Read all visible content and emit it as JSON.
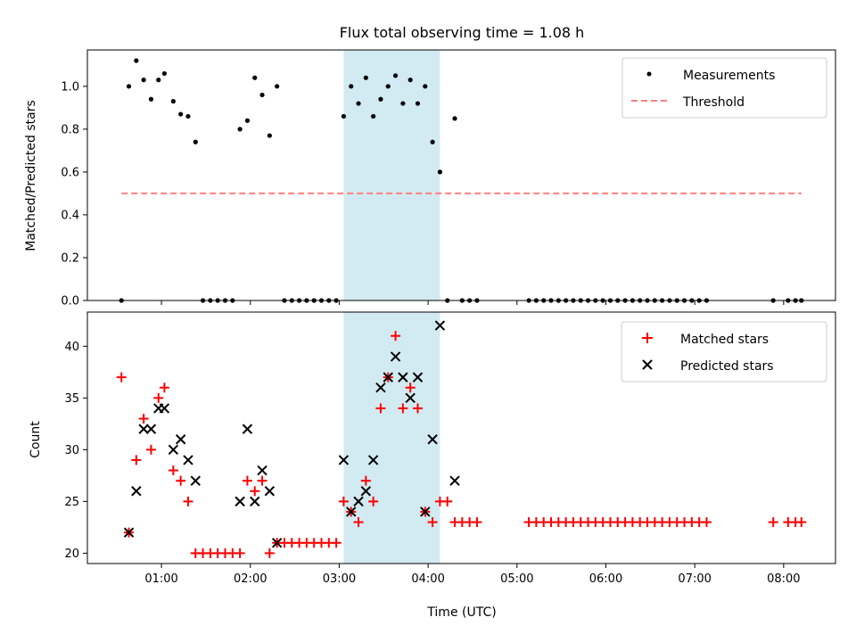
{
  "figure": {
    "title": "Flux total observing time = 1.08 h"
  },
  "colors": {
    "measurement": "#000000",
    "threshold": "#ff7f7f",
    "matched": "#ff0000",
    "predicted": "#000000",
    "highlight": "#add8e6"
  },
  "chart_data": [
    {
      "type": "scatter",
      "title": "Flux total observing time = 1.08 h",
      "xlabel": "",
      "ylabel": "Matched/Predicted stars",
      "xlim": [
        "00:10",
        "08:35"
      ],
      "ylim": [
        0,
        1.17
      ],
      "x_ticks": [
        "01:00",
        "02:00",
        "03:00",
        "04:00",
        "05:00",
        "06:00",
        "07:00",
        "08:00"
      ],
      "y_ticks": [
        0.0,
        0.2,
        0.4,
        0.6,
        0.8,
        1.0
      ],
      "x_tick_labels_shown": false,
      "highlight_span": [
        "03:03",
        "04:08"
      ],
      "legend_position": "upper right",
      "legend": [
        "Measurements",
        "Threshold"
      ],
      "series": [
        {
          "name": "Measurements",
          "marker": "dot",
          "x": [
            "00:33",
            "00:38",
            "00:43",
            "00:48",
            "00:53",
            "00:58",
            "01:02",
            "01:08",
            "01:13",
            "01:18",
            "01:23",
            "01:28",
            "01:33",
            "01:38",
            "01:43",
            "01:48",
            "01:53",
            "01:58",
            "02:03",
            "02:08",
            "02:13",
            "02:18",
            "02:23",
            "02:28",
            "02:33",
            "02:38",
            "02:43",
            "02:48",
            "02:53",
            "02:58",
            "03:03",
            "03:08",
            "03:13",
            "03:18",
            "03:23",
            "03:28",
            "03:33",
            "03:38",
            "03:43",
            "03:48",
            "03:53",
            "03:58",
            "04:03",
            "04:08",
            "04:13",
            "04:18",
            "04:23",
            "04:28",
            "04:33",
            "05:08",
            "05:13",
            "05:18",
            "05:23",
            "05:28",
            "05:33",
            "05:38",
            "05:43",
            "05:48",
            "05:53",
            "05:58",
            "06:03",
            "06:08",
            "06:13",
            "06:18",
            "06:23",
            "06:28",
            "06:33",
            "06:38",
            "06:43",
            "06:48",
            "06:53",
            "06:58",
            "07:03",
            "07:08",
            "07:53",
            "08:03",
            "08:08",
            "08:12"
          ],
          "y": [
            0,
            1.0,
            1.12,
            1.03,
            0.94,
            1.03,
            1.06,
            0.93,
            0.87,
            0.86,
            0.74,
            0,
            0,
            0,
            0,
            0,
            0.8,
            0.84,
            1.04,
            0.96,
            0.77,
            1.0,
            0,
            0,
            0,
            0,
            0,
            0,
            0,
            0,
            0.86,
            1.0,
            0.92,
            1.04,
            0.86,
            0.94,
            1.0,
            1.05,
            0.92,
            1.03,
            0.92,
            1.0,
            0.74,
            0.6,
            0,
            0.85,
            0,
            0,
            0,
            0,
            0,
            0,
            0,
            0,
            0,
            0,
            0,
            0,
            0,
            0,
            0,
            0,
            0,
            0,
            0,
            0,
            0,
            0,
            0,
            0,
            0,
            0,
            0,
            0,
            0,
            0,
            0,
            0
          ]
        },
        {
          "name": "Threshold",
          "style": "dashed",
          "x": [
            "00:33",
            "08:12"
          ],
          "y": [
            0.5,
            0.5
          ]
        }
      ]
    },
    {
      "type": "scatter",
      "title": "",
      "xlabel": "Time (UTC)",
      "ylabel": "Count",
      "xlim": [
        "00:10",
        "08:35"
      ],
      "ylim": [
        19,
        43.3
      ],
      "x_ticks": [
        "01:00",
        "02:00",
        "03:00",
        "04:00",
        "05:00",
        "06:00",
        "07:00",
        "08:00"
      ],
      "y_ticks": [
        20,
        25,
        30,
        35,
        40
      ],
      "highlight_span": [
        "03:03",
        "04:08"
      ],
      "legend_position": "upper right",
      "legend": [
        "Matched stars",
        "Predicted stars"
      ],
      "series": [
        {
          "name": "Matched stars",
          "marker": "plus",
          "x": [
            "00:33",
            "00:38",
            "00:43",
            "00:48",
            "00:53",
            "00:58",
            "01:02",
            "01:08",
            "01:13",
            "01:18",
            "01:23",
            "01:28",
            "01:33",
            "01:38",
            "01:43",
            "01:48",
            "01:53",
            "01:58",
            "02:03",
            "02:08",
            "02:13",
            "02:18",
            "02:23",
            "02:28",
            "02:33",
            "02:38",
            "02:43",
            "02:48",
            "02:53",
            "02:58",
            "03:03",
            "03:08",
            "03:13",
            "03:18",
            "03:23",
            "03:28",
            "03:33",
            "03:38",
            "03:43",
            "03:48",
            "03:53",
            "03:58",
            "04:03",
            "04:08",
            "04:13",
            "04:18",
            "04:23",
            "04:28",
            "04:33",
            "05:08",
            "05:13",
            "05:18",
            "05:23",
            "05:28",
            "05:33",
            "05:38",
            "05:43",
            "05:48",
            "05:53",
            "05:58",
            "06:03",
            "06:08",
            "06:13",
            "06:18",
            "06:23",
            "06:28",
            "06:33",
            "06:38",
            "06:43",
            "06:48",
            "06:53",
            "06:58",
            "07:03",
            "07:08",
            "07:53",
            "08:03",
            "08:08",
            "08:12"
          ],
          "y": [
            37,
            22,
            29,
            33,
            30,
            35,
            36,
            28,
            27,
            25,
            20,
            20,
            20,
            20,
            20,
            20,
            20,
            27,
            26,
            27,
            20,
            21,
            21,
            21,
            21,
            21,
            21,
            21,
            21,
            21,
            25,
            24,
            23,
            27,
            25,
            34,
            37,
            41,
            34,
            36,
            34,
            24,
            23,
            25,
            25,
            23,
            23,
            23,
            23,
            23,
            23,
            23,
            23,
            23,
            23,
            23,
            23,
            23,
            23,
            23,
            23,
            23,
            23,
            23,
            23,
            23,
            23,
            23,
            23,
            23,
            23,
            23,
            23,
            23,
            23,
            23,
            23,
            23
          ]
        },
        {
          "name": "Predicted stars",
          "marker": "x",
          "x": [
            "00:38",
            "00:43",
            "00:48",
            "00:53",
            "00:58",
            "01:02",
            "01:08",
            "01:13",
            "01:18",
            "01:23",
            "01:53",
            "01:58",
            "02:03",
            "02:08",
            "02:13",
            "02:18",
            "03:03",
            "03:08",
            "03:13",
            "03:18",
            "03:23",
            "03:28",
            "03:33",
            "03:38",
            "03:43",
            "03:48",
            "03:53",
            "03:58",
            "04:03",
            "04:08",
            "04:18"
          ],
          "y": [
            22,
            26,
            32,
            32,
            34,
            34,
            30,
            31,
            29,
            27,
            25,
            32,
            25,
            28,
            26,
            21,
            29,
            24,
            25,
            26,
            29,
            36,
            37,
            39,
            37,
            35,
            37,
            24,
            31,
            42,
            27
          ]
        }
      ]
    }
  ]
}
